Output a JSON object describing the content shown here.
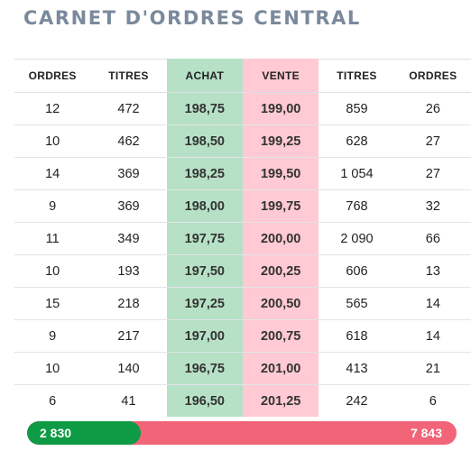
{
  "title": "CARNET D'ORDRES CENTRAL",
  "headers": [
    "ORDRES",
    "TITRES",
    "ACHAT",
    "VENTE",
    "TITRES",
    "ORDRES"
  ],
  "rows": [
    [
      "12",
      "472",
      "198,75",
      "199,00",
      "859",
      "26"
    ],
    [
      "10",
      "462",
      "198,50",
      "199,25",
      "628",
      "27"
    ],
    [
      "14",
      "369",
      "198,25",
      "199,50",
      "1 054",
      "27"
    ],
    [
      "9",
      "369",
      "198,00",
      "199,75",
      "768",
      "32"
    ],
    [
      "11",
      "349",
      "197,75",
      "200,00",
      "2 090",
      "66"
    ],
    [
      "10",
      "193",
      "197,50",
      "200,25",
      "606",
      "13"
    ],
    [
      "15",
      "218",
      "197,25",
      "200,50",
      "565",
      "14"
    ],
    [
      "9",
      "217",
      "197,00",
      "200,75",
      "618",
      "14"
    ],
    [
      "10",
      "140",
      "196,75",
      "201,00",
      "413",
      "21"
    ],
    [
      "6",
      "41",
      "196,50",
      "201,25",
      "242",
      "6"
    ]
  ],
  "totals": {
    "bid_total": "2 830",
    "ask_total": "7 843",
    "bid_share": 0.265,
    "bid_color": "#0f9a46",
    "ask_color": "#f26478"
  },
  "colors": {
    "buy_bg": "#b6e1c6",
    "sell_bg": "#ffcad3",
    "title": "#7a8a9c"
  }
}
